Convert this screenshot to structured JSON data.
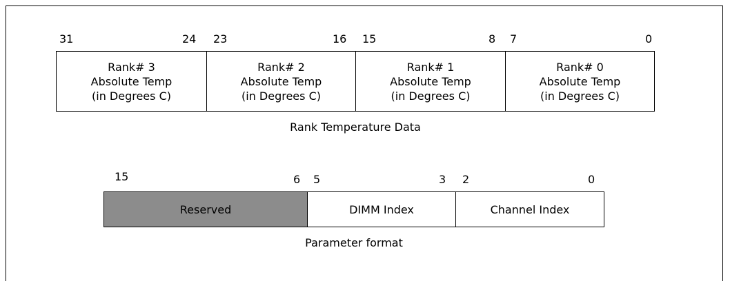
{
  "rank_register": {
    "fields": [
      {
        "msb": "31",
        "lsb": "24",
        "line1": "Rank# 3",
        "line2": "Absolute Temp",
        "line3": "(in Degrees C)"
      },
      {
        "msb": "23",
        "lsb": "16",
        "line1": "Rank# 2",
        "line2": "Absolute Temp",
        "line3": "(in Degrees C)"
      },
      {
        "msb": "15",
        "lsb": "8",
        "line1": "Rank# 1",
        "line2": "Absolute Temp",
        "line3": "(in Degrees C)"
      },
      {
        "msb": "7",
        "lsb": "0",
        "line1": "Rank# 0",
        "line2": "Absolute Temp",
        "line3": "(in Degrees C)"
      }
    ],
    "caption": "Rank Temperature Data"
  },
  "parameter_register": {
    "fields": [
      {
        "msb": "15",
        "lsb": "6",
        "label": "Reserved"
      },
      {
        "msb": "5",
        "lsb": "3",
        "label": "DIMM Index"
      },
      {
        "msb": "2",
        "lsb": "0",
        "label": "Channel Index"
      }
    ],
    "caption": "Parameter format",
    "reserved_color": "#8c8c8c"
  }
}
